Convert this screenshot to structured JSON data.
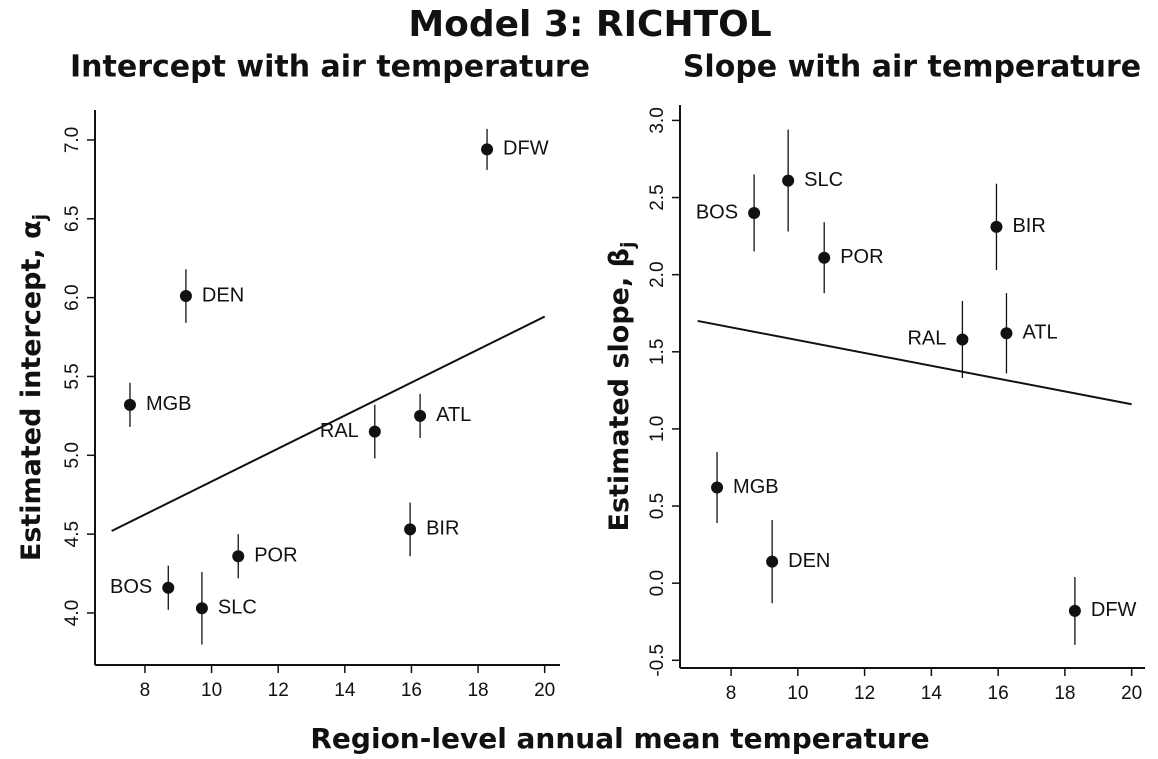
{
  "title": "Model 3: RICHTOL",
  "xlabel": "Region-level annual mean temperature",
  "chart_data": [
    {
      "type": "scatter",
      "title": "Intercept with air temperature",
      "ylabel": "Estimated intercept, α",
      "ylabel_subscript": "j",
      "point_labels": [
        "DFW",
        "DEN",
        "MGB",
        "RAL",
        "ATL",
        "BIR",
        "POR",
        "BOS",
        "SLC"
      ],
      "x": [
        18.27,
        9.23,
        7.55,
        14.9,
        16.26,
        15.96,
        10.8,
        8.7,
        9.71
      ],
      "y": [
        6.94,
        6.01,
        5.32,
        5.15,
        5.25,
        4.53,
        4.36,
        4.16,
        4.03
      ],
      "errors": [
        0.13,
        0.17,
        0.14,
        0.17,
        0.14,
        0.17,
        0.14,
        0.14,
        0.23
      ],
      "color": "#111111",
      "fit_line": {
        "x": [
          7,
          20
        ],
        "y": [
          4.52,
          5.88
        ]
      },
      "xlim": [
        6.5,
        20.46
      ],
      "ylim": [
        3.67,
        7.19
      ],
      "xticks": [
        8,
        10,
        12,
        14,
        16,
        18,
        20
      ],
      "yticks": [
        {
          "value": 4,
          "label": "4.0"
        },
        4.5,
        {
          "value": 5,
          "label": "5.0"
        },
        5.5,
        {
          "value": 6,
          "label": "6.0"
        },
        6.5,
        {
          "value": 7,
          "label": "7.0"
        }
      ]
    },
    {
      "type": "scatter",
      "title": "Slope with air temperature",
      "ylabel": "Estimated slope, β",
      "ylabel_subscript": "j",
      "point_labels": [
        "BOS",
        "SLC",
        "POR",
        "BIR",
        "RAL",
        "ATL",
        "MGB",
        "DEN",
        "DFW"
      ],
      "x": [
        8.69,
        9.71,
        10.79,
        15.95,
        14.93,
        16.25,
        7.58,
        9.23,
        18.3
      ],
      "y": [
        2.4,
        2.61,
        2.11,
        2.31,
        1.58,
        1.62,
        0.62,
        0.14,
        -0.18
      ],
      "errors": [
        0.25,
        0.33,
        0.23,
        0.28,
        0.25,
        0.26,
        0.23,
        0.27,
        0.22
      ],
      "color": "#111111",
      "fit_line": {
        "x": [
          7,
          20
        ],
        "y": [
          1.7,
          1.16
        ]
      },
      "xlim": [
        6.47,
        20.4
      ],
      "ylim": [
        -0.55,
        3.1
      ],
      "xticks": [
        8,
        10,
        12,
        14,
        16,
        18,
        20
      ],
      "yticks": [
        -0.5,
        {
          "value": 0,
          "label": "0.0"
        },
        0.5,
        {
          "value": 1,
          "label": "1.0"
        },
        1.5,
        {
          "value": 2,
          "label": "2.0"
        },
        2.5,
        {
          "value": 3,
          "label": "3.0"
        }
      ]
    }
  ]
}
